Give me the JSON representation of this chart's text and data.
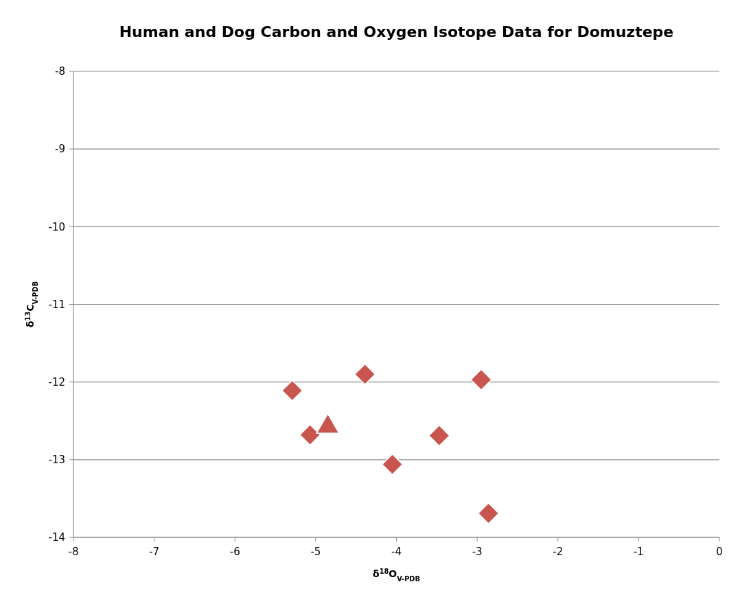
{
  "chart_data": {
    "type": "scatter",
    "title": "Human and Dog Carbon and Oxygen Isotope Data for Domuztepe",
    "xlabel": "δ$^{18}$O$_{V-PDB}$",
    "ylabel": "δ$^{13}$C$_{V-PDB}$",
    "xlim": [
      -8,
      0
    ],
    "xticks": [
      -8,
      -7,
      -6,
      -5,
      -4,
      -3,
      -2,
      -1,
      0
    ],
    "ylim": [
      -14,
      -8
    ],
    "yticks": [
      -14,
      -13,
      -12,
      -11,
      -10,
      -9,
      -8
    ],
    "grid": "y",
    "series": [
      {
        "color": "#c9554f",
        "marker": "diamond",
        "x": [
          -5.29,
          -4.39,
          -2.95,
          -5.07,
          -3.47,
          -4.05,
          -2.86
        ],
        "values": [
          -12.11,
          -11.9,
          -11.97,
          -12.68,
          -12.69,
          -13.06,
          -13.69
        ]
      },
      {
        "color": "#c9554f",
        "marker": "triangle",
        "x": [
          -4.85
        ],
        "values": [
          -12.56
        ]
      }
    ]
  }
}
